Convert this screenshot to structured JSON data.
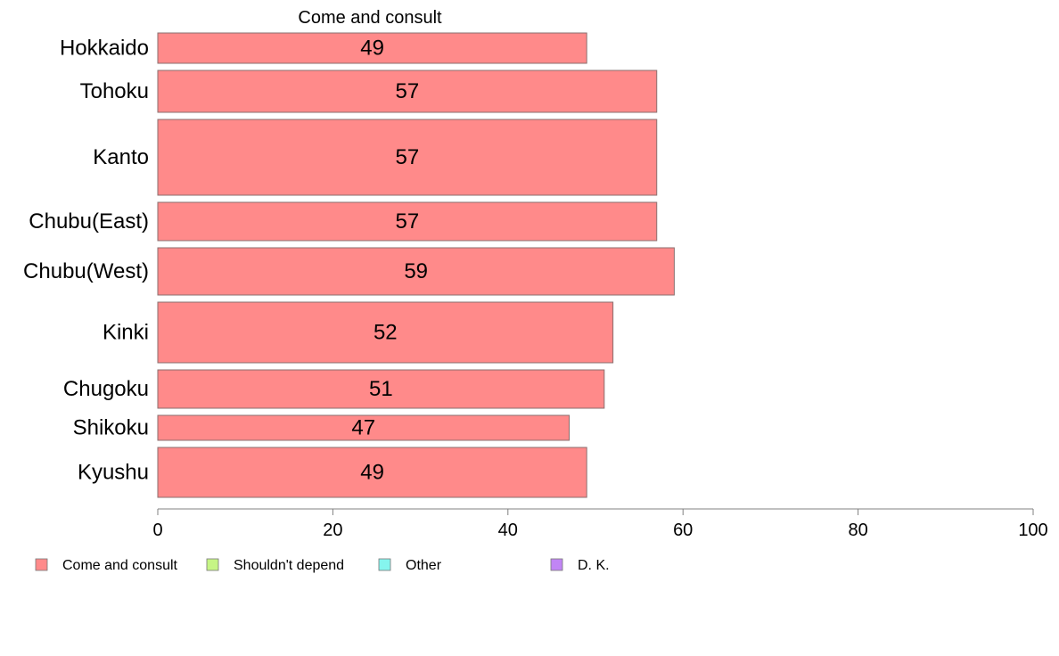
{
  "chart_data": {
    "type": "bar",
    "orientation": "horizontal",
    "title": "Come and consult",
    "categories": [
      "Hokkaido",
      "Tohoku",
      "Kanto",
      "Chubu(East)",
      "Chubu(West)",
      "Kinki",
      "Chugoku",
      "Shikoku",
      "Kyushu"
    ],
    "series": [
      {
        "name": "Come and consult",
        "values": [
          49,
          57,
          57,
          57,
          59,
          52,
          51,
          47,
          49
        ],
        "color": "#ff8a8a"
      }
    ],
    "xlim": [
      0,
      100
    ],
    "xticks": [
      0,
      20,
      40,
      60,
      80,
      100
    ],
    "grid": false,
    "legend": {
      "placement": "bottom",
      "items": [
        {
          "label": "Come and consult",
          "color": "#ff8a8a"
        },
        {
          "label": "Shouldn't depend",
          "color": "#c6f585"
        },
        {
          "label": "Other",
          "color": "#85f5ee"
        },
        {
          "label": "D. K.",
          "color": "#c185f5"
        }
      ]
    }
  }
}
